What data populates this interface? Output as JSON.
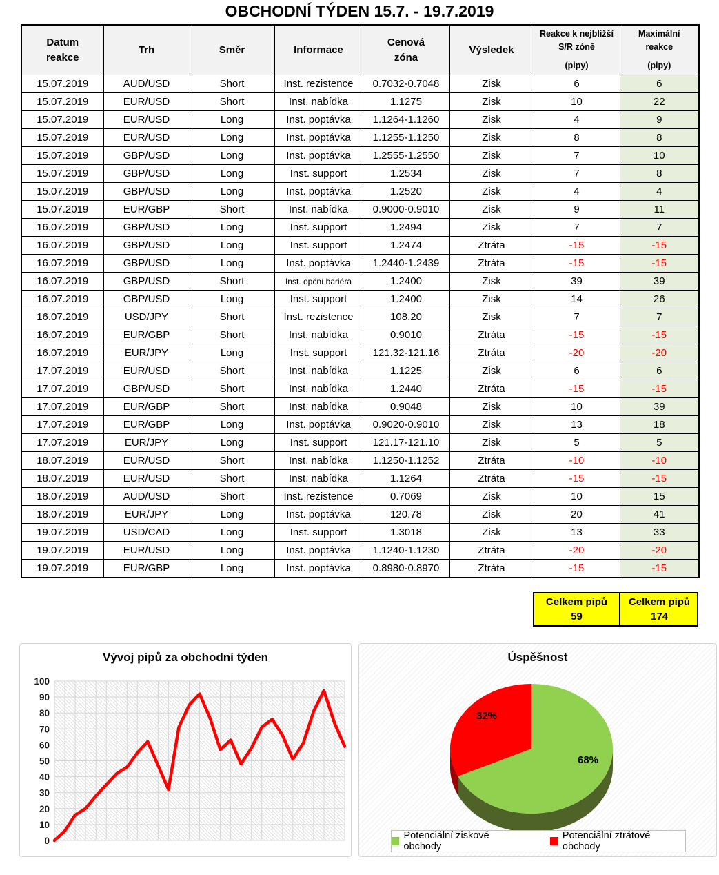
{
  "title": "OBCHODNÍ TÝDEN 15.7. - 19.7.2019",
  "table": {
    "headers": [
      {
        "lines": [
          "Datum",
          "reakce"
        ],
        "small": false
      },
      {
        "lines": [
          "Trh"
        ],
        "small": false
      },
      {
        "lines": [
          "Směr"
        ],
        "small": false
      },
      {
        "lines": [
          "Informace"
        ],
        "small": false
      },
      {
        "lines": [
          "Cenová",
          "zóna"
        ],
        "small": false
      },
      {
        "lines": [
          "Výsledek"
        ],
        "small": false
      },
      {
        "lines": [
          "Reakce k nejbližší",
          "S/R zóně",
          "(pipy)"
        ],
        "small": true
      },
      {
        "lines": [
          "Maximální",
          "reakce",
          "(pipy)"
        ],
        "small": true
      }
    ],
    "rows": [
      [
        "15.07.2019",
        "AUD/USD",
        "Short",
        "Inst. rezistence",
        "0.7032-0.7048",
        "Zisk",
        "6",
        "6"
      ],
      [
        "15.07.2019",
        "EUR/USD",
        "Short",
        "Inst. nabídka",
        "1.1275",
        "Zisk",
        "10",
        "22"
      ],
      [
        "15.07.2019",
        "EUR/USD",
        "Long",
        "Inst. poptávka",
        "1.1264-1.1260",
        "Zisk",
        "4",
        "9"
      ],
      [
        "15.07.2019",
        "EUR/USD",
        "Long",
        "Inst. poptávka",
        "1.1255-1.1250",
        "Zisk",
        "8",
        "8"
      ],
      [
        "15.07.2019",
        "GBP/USD",
        "Long",
        "Inst. poptávka",
        "1.2555-1.2550",
        "Zisk",
        "7",
        "10"
      ],
      [
        "15.07.2019",
        "GBP/USD",
        "Long",
        "Inst. support",
        "1.2534",
        "Zisk",
        "7",
        "8"
      ],
      [
        "15.07.2019",
        "GBP/USD",
        "Long",
        "Inst. poptávka",
        "1.2520",
        "Zisk",
        "4",
        "4"
      ],
      [
        "15.07.2019",
        "EUR/GBP",
        "Short",
        "Inst. nabídka",
        "0.9000-0.9010",
        "Zisk",
        "9",
        "11"
      ],
      [
        "16.07.2019",
        "GBP/USD",
        "Long",
        "Inst. support",
        "1.2494",
        "Zisk",
        "7",
        "7"
      ],
      [
        "16.07.2019",
        "GBP/USD",
        "Long",
        "Inst. support",
        "1.2474",
        "Ztráta",
        "-15",
        "-15"
      ],
      [
        "16.07.2019",
        "GBP/USD",
        "Long",
        "Inst. poptávka",
        "1.2440-1.2439",
        "Ztráta",
        "-15",
        "-15"
      ],
      [
        "16.07.2019",
        "GBP/USD",
        "Short",
        "Inst. opční bariéra",
        "1.2400",
        "Zisk",
        "39",
        "39"
      ],
      [
        "16.07.2019",
        "GBP/USD",
        "Long",
        "Inst. support",
        "1.2400",
        "Zisk",
        "14",
        "26"
      ],
      [
        "16.07.2019",
        "USD/JPY",
        "Short",
        "Inst. rezistence",
        "108.20",
        "Zisk",
        "7",
        "7"
      ],
      [
        "16.07.2019",
        "EUR/GBP",
        "Short",
        "Inst. nabídka",
        "0.9010",
        "Ztráta",
        "-15",
        "-15"
      ],
      [
        "16.07.2019",
        "EUR/JPY",
        "Long",
        "Inst. support",
        "121.32-121.16",
        "Ztráta",
        "-20",
        "-20"
      ],
      [
        "17.07.2019",
        "EUR/USD",
        "Short",
        "Inst. nabídka",
        "1.1225",
        "Zisk",
        "6",
        "6"
      ],
      [
        "17.07.2019",
        "GBP/USD",
        "Short",
        "Inst. nabídka",
        "1.2440",
        "Ztráta",
        "-15",
        "-15"
      ],
      [
        "17.07.2019",
        "EUR/GBP",
        "Short",
        "Inst. nabídka",
        "0.9048",
        "Zisk",
        "10",
        "39"
      ],
      [
        "17.07.2019",
        "EUR/GBP",
        "Long",
        "Inst. poptávka",
        "0.9020-0.9010",
        "Zisk",
        "13",
        "18"
      ],
      [
        "17.07.2019",
        "EUR/JPY",
        "Long",
        "Inst. support",
        "121.17-121.10",
        "Zisk",
        "5",
        "5"
      ],
      [
        "18.07.2019",
        "EUR/USD",
        "Short",
        "Inst. nabídka",
        "1.1250-1.1252",
        "Ztráta",
        "-10",
        "-10"
      ],
      [
        "18.07.2019",
        "EUR/USD",
        "Short",
        "Inst. nabídka",
        "1.1264",
        "Ztráta",
        "-15",
        "-15"
      ],
      [
        "18.07.2019",
        "AUD/USD",
        "Short",
        "Inst. rezistence",
        "0.7069",
        "Zisk",
        "10",
        "15"
      ],
      [
        "18.07.2019",
        "EUR/JPY",
        "Long",
        "Inst. poptávka",
        "120.78",
        "Zisk",
        "20",
        "41"
      ],
      [
        "19.07.2019",
        "USD/CAD",
        "Long",
        "Inst. support",
        "1.3018",
        "Zisk",
        "13",
        "33"
      ],
      [
        "19.07.2019",
        "EUR/USD",
        "Long",
        "Inst. poptávka",
        "1.1240-1.1230",
        "Ztráta",
        "-20",
        "-20"
      ],
      [
        "19.07.2019",
        "EUR/GBP",
        "Long",
        "Inst. poptávka",
        "0.8980-0.8970",
        "Ztráta",
        "-15",
        "-15"
      ]
    ]
  },
  "totals": {
    "label": "Celkem pipů",
    "reaction_total": "59",
    "max_total": "174"
  },
  "chart_data": [
    {
      "type": "line",
      "title": "Vývoj pipů za obchodní týden",
      "x": [
        0,
        1,
        2,
        3,
        4,
        5,
        6,
        7,
        8,
        9,
        10,
        11,
        12,
        13,
        14,
        15,
        16,
        17,
        18,
        19,
        20,
        21,
        22,
        23,
        24,
        25,
        26,
        27,
        28
      ],
      "values": [
        0,
        6,
        16,
        20,
        28,
        35,
        42,
        46,
        55,
        62,
        47,
        32,
        71,
        85,
        92,
        77,
        57,
        63,
        48,
        58,
        71,
        76,
        66,
        51,
        61,
        81,
        94,
        74,
        59
      ],
      "xlabel": "",
      "ylabel": "",
      "ylim": [
        0,
        100
      ],
      "ytick_step": 10,
      "yticks": [
        0,
        10,
        20,
        30,
        40,
        50,
        60,
        70,
        80,
        90,
        100
      ],
      "grid": true,
      "line_color": "#FF0000"
    },
    {
      "type": "pie",
      "title": "Úspěšnost",
      "labels": [
        "Potenciální ziskové obchody",
        "Potenciální ztrátové obchody"
      ],
      "values": [
        68,
        32
      ],
      "data_labels": [
        "68%",
        "32%"
      ],
      "colors": [
        "#92D050",
        "#FF0000"
      ],
      "side_colors": [
        "#4F6228",
        "#9C0006"
      ],
      "style": "3d",
      "legend_position": "bottom"
    }
  ],
  "colors": {
    "loss_text": "#FF0000",
    "max_col_bg": "#E7EFDC",
    "header_bg": "#F2F2F2",
    "totals_bg": "#FFFF00",
    "line_red": "#FF0000",
    "pie_green": "#92D050",
    "pie_red": "#FF0000"
  }
}
